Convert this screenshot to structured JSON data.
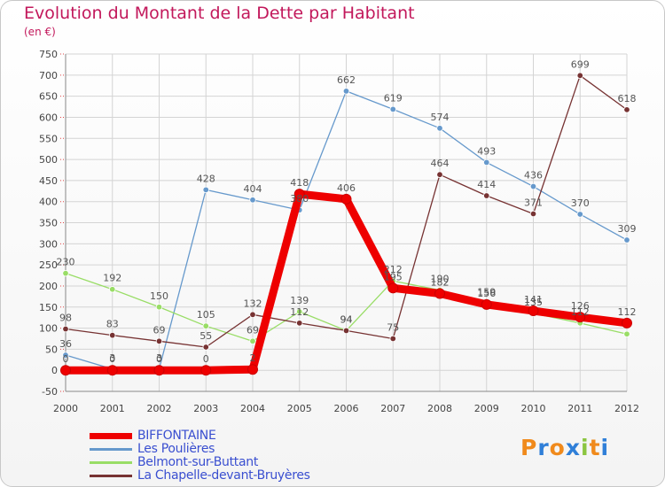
{
  "header": {
    "title": "Evolution du Montant de la Dette par Habitant",
    "unit": "(en €)"
  },
  "logo": {
    "text": "Proxiti",
    "colors": [
      "#f08a1c",
      "#2f7fd8",
      "#f08a1c",
      "#2f7fd8",
      "#8bc540",
      "#f08a1c",
      "#2f7fd8"
    ]
  },
  "chart_data": {
    "type": "line",
    "title": "Evolution du Montant de la Dette par Habitant",
    "ylabel": "(en €)",
    "x": [
      "2000",
      "2001",
      "2002",
      "2003",
      "2004",
      "2005",
      "2006",
      "2007",
      "2008",
      "2009",
      "2010",
      "2011",
      "2012"
    ],
    "ylim": [
      -50,
      750
    ],
    "yticks": [
      -50,
      0,
      50,
      100,
      150,
      200,
      250,
      300,
      350,
      400,
      450,
      500,
      550,
      600,
      650,
      700,
      750
    ],
    "grid": true,
    "legend_position": "bottom-left",
    "series": [
      {
        "name": "BIFFONTAINE",
        "color": "#ee0000",
        "values": [
          0,
          0,
          0,
          0,
          2,
          418,
          406,
          195,
          182,
          156,
          141,
          126,
          112
        ]
      },
      {
        "name": "Les Poulières",
        "color": "#6699cc",
        "values": [
          36,
          3,
          3,
          428,
          404,
          380,
          662,
          619,
          574,
          493,
          436,
          370,
          309
        ]
      },
      {
        "name": "Belmont-sur-Buttant",
        "color": "#99dd66",
        "values": [
          230,
          192,
          150,
          105,
          69,
          139,
          94,
          212,
          190,
          159,
          135,
          112,
          86
        ]
      },
      {
        "name": "La Chapelle-devant-Bruyères",
        "color": "#773333",
        "values": [
          98,
          83,
          69,
          55,
          132,
          112,
          94,
          75,
          464,
          414,
          371,
          699,
          618
        ]
      }
    ],
    "data_labels": [
      {
        "series": 0,
        "labels": [
          "0",
          "0",
          "0",
          "0",
          "2",
          "418",
          "406",
          "195",
          "182",
          "156",
          "141",
          "126",
          "112"
        ]
      },
      {
        "series": 1,
        "labels": [
          "36",
          "3",
          "3",
          "428",
          "404",
          "380",
          "662",
          "619",
          "574",
          "493",
          "436",
          "370",
          "309"
        ]
      },
      {
        "series": 2,
        "labels": [
          "230",
          "192",
          "150",
          "105",
          "69",
          "139",
          "94",
          "212",
          "190",
          "159",
          "135",
          "112",
          ""
        ]
      },
      {
        "series": 3,
        "labels": [
          "98",
          "83",
          "69",
          "55",
          "132",
          "112",
          "94",
          "75",
          "464",
          "414",
          "371",
          "699",
          "618"
        ]
      }
    ]
  }
}
